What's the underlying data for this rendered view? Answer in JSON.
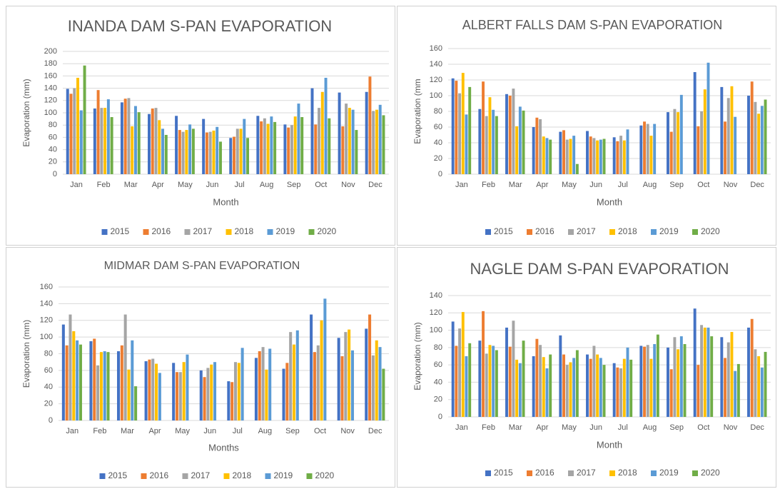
{
  "chart_data": [
    {
      "type": "bar",
      "title": "INANDA DAM S-PAN EVAPORATION",
      "y_label": "Evaporation (mm)",
      "x_label": "Month",
      "categories": [
        "Jan",
        "Feb",
        "Mar",
        "Apr",
        "May",
        "Jun",
        "Jul",
        "Aug",
        "Sep",
        "Oct",
        "Nov",
        "Dec"
      ],
      "ylim": [
        0,
        200
      ],
      "yticks": [
        0,
        20,
        40,
        60,
        80,
        100,
        120,
        140,
        160,
        180,
        200
      ],
      "grid": true,
      "legend": "bottom",
      "series": [
        {
          "name": "2015",
          "color": "#4472c4",
          "values": [
            139,
            107,
            117,
            98,
            95,
            90,
            59,
            95,
            81,
            140,
            133,
            134
          ]
        },
        {
          "name": "2016",
          "color": "#ed7d31",
          "values": [
            131,
            137,
            123,
            107,
            72,
            68,
            61,
            86,
            76,
            81,
            78,
            159
          ]
        },
        {
          "name": "2017",
          "color": "#a5a5a5",
          "values": [
            140,
            108,
            124,
            108,
            69,
            69,
            74,
            91,
            80,
            108,
            115,
            103
          ]
        },
        {
          "name": "2018",
          "color": "#ffc000",
          "values": [
            157,
            108,
            78,
            88,
            72,
            71,
            74,
            82,
            94,
            134,
            108,
            105
          ]
        },
        {
          "name": "2019",
          "color": "#5b9bd5",
          "values": [
            104,
            122,
            111,
            74,
            81,
            77,
            90,
            94,
            115,
            157,
            105,
            113
          ]
        },
        {
          "name": "2020",
          "color": "#70ad47",
          "values": [
            177,
            93,
            101,
            64,
            74,
            53,
            59,
            85,
            93,
            91,
            72,
            96
          ]
        }
      ]
    },
    {
      "type": "bar",
      "title": "ALBERT FALLS DAM S-PAN EVAPORATION",
      "y_label": "Evaporation (mm",
      "x_label": "Month",
      "categories": [
        "Jan",
        "Feb",
        "Mar",
        "Apr",
        "May",
        "Jun",
        "Jul",
        "Aug",
        "Sep",
        "Oct",
        "Nov",
        "Dec"
      ],
      "ylim": [
        0,
        160
      ],
      "yticks": [
        0,
        20,
        40,
        60,
        80,
        100,
        120,
        140,
        160
      ],
      "grid": true,
      "legend": "bottom",
      "series": [
        {
          "name": "2015",
          "color": "#4472c4",
          "values": [
            122,
            83,
            102,
            60,
            54,
            55,
            47,
            62,
            79,
            130,
            111,
            100
          ]
        },
        {
          "name": "2016",
          "color": "#ed7d31",
          "values": [
            119,
            118,
            100,
            72,
            56,
            48,
            42,
            67,
            54,
            61,
            67,
            118
          ]
        },
        {
          "name": "2017",
          "color": "#a5a5a5",
          "values": [
            103,
            74,
            109,
            70,
            44,
            46,
            49,
            64,
            83,
            80,
            97,
            92
          ]
        },
        {
          "name": "2018",
          "color": "#ffc000",
          "values": [
            129,
            98,
            61,
            48,
            45,
            43,
            43,
            49,
            79,
            108,
            112,
            77
          ]
        },
        {
          "name": "2019",
          "color": "#5b9bd5",
          "values": [
            76,
            82,
            86,
            46,
            49,
            44,
            57,
            64,
            101,
            142,
            73,
            87
          ]
        },
        {
          "name": "2020",
          "color": "#70ad47",
          "values": [
            111,
            74,
            81,
            44,
            13,
            45,
            null,
            null,
            null,
            null,
            null,
            95
          ]
        }
      ]
    },
    {
      "type": "bar",
      "title": "MIDMAR DAM S-PAN EVAPORATION",
      "y_label": "Evaporation (mm)",
      "x_label": "Months",
      "categories": [
        "Jan",
        "Feb",
        "Mar",
        "Apr",
        "May",
        "Jun",
        "Jul",
        "Aug",
        "Sep",
        "Oct",
        "Nov",
        "Dec"
      ],
      "ylim": [
        0,
        160
      ],
      "yticks": [
        0,
        20,
        40,
        60,
        80,
        100,
        120,
        140,
        160
      ],
      "grid": true,
      "legend": "bottom",
      "series": [
        {
          "name": "2015",
          "color": "#4472c4",
          "values": [
            115,
            95,
            83,
            71,
            69,
            60,
            47,
            75,
            62,
            127,
            99,
            110
          ]
        },
        {
          "name": "2016",
          "color": "#ed7d31",
          "values": [
            90,
            98,
            90,
            73,
            58,
            52,
            46,
            83,
            69,
            82,
            77,
            127
          ]
        },
        {
          "name": "2017",
          "color": "#a5a5a5",
          "values": [
            127,
            66,
            127,
            74,
            58,
            63,
            70,
            88,
            106,
            90,
            106,
            78
          ]
        },
        {
          "name": "2018",
          "color": "#ffc000",
          "values": [
            107,
            82,
            61,
            68,
            70,
            67,
            69,
            61,
            91,
            120,
            109,
            96
          ]
        },
        {
          "name": "2019",
          "color": "#5b9bd5",
          "values": [
            96,
            83,
            96,
            57,
            79,
            70,
            87,
            86,
            108,
            146,
            84,
            88
          ]
        },
        {
          "name": "2020",
          "color": "#70ad47",
          "values": [
            91,
            82,
            41,
            null,
            null,
            null,
            null,
            null,
            null,
            null,
            null,
            62
          ]
        }
      ]
    },
    {
      "type": "bar",
      "title": "NAGLE DAM S-PAN EVAPORATION",
      "y_label": "Evaporation (mm)",
      "x_label": "Month",
      "categories": [
        "Jan",
        "Feb",
        "Mar",
        "Apr",
        "May",
        "Jun",
        "Jul",
        "Aug",
        "Sep",
        "Oct",
        "Nov",
        "Dec"
      ],
      "ylim": [
        0,
        140
      ],
      "yticks": [
        0,
        20,
        40,
        60,
        80,
        100,
        120,
        140
      ],
      "grid": true,
      "legend": "bottom",
      "series": [
        {
          "name": "2015",
          "color": "#4472c4",
          "values": [
            110,
            88,
            103,
            70,
            94,
            72,
            62,
            82,
            80,
            125,
            92,
            103
          ]
        },
        {
          "name": "2016",
          "color": "#ed7d31",
          "values": [
            82,
            122,
            81,
            90,
            72,
            67,
            57,
            81,
            55,
            60,
            68,
            113
          ]
        },
        {
          "name": "2017",
          "color": "#a5a5a5",
          "values": [
            102,
            73,
            111,
            83,
            60,
            82,
            56,
            83,
            92,
            106,
            86,
            78
          ]
        },
        {
          "name": "2018",
          "color": "#ffc000",
          "values": [
            121,
            83,
            66,
            69,
            63,
            72,
            67,
            67,
            78,
            103,
            98,
            70
          ]
        },
        {
          "name": "2019",
          "color": "#5b9bd5",
          "values": [
            70,
            82,
            62,
            56,
            68,
            68,
            80,
            84,
            93,
            103,
            53,
            57
          ]
        },
        {
          "name": "2020",
          "color": "#70ad47",
          "values": [
            85,
            77,
            88,
            72,
            77,
            60,
            66,
            95,
            84,
            93,
            61,
            75
          ]
        }
      ]
    }
  ]
}
